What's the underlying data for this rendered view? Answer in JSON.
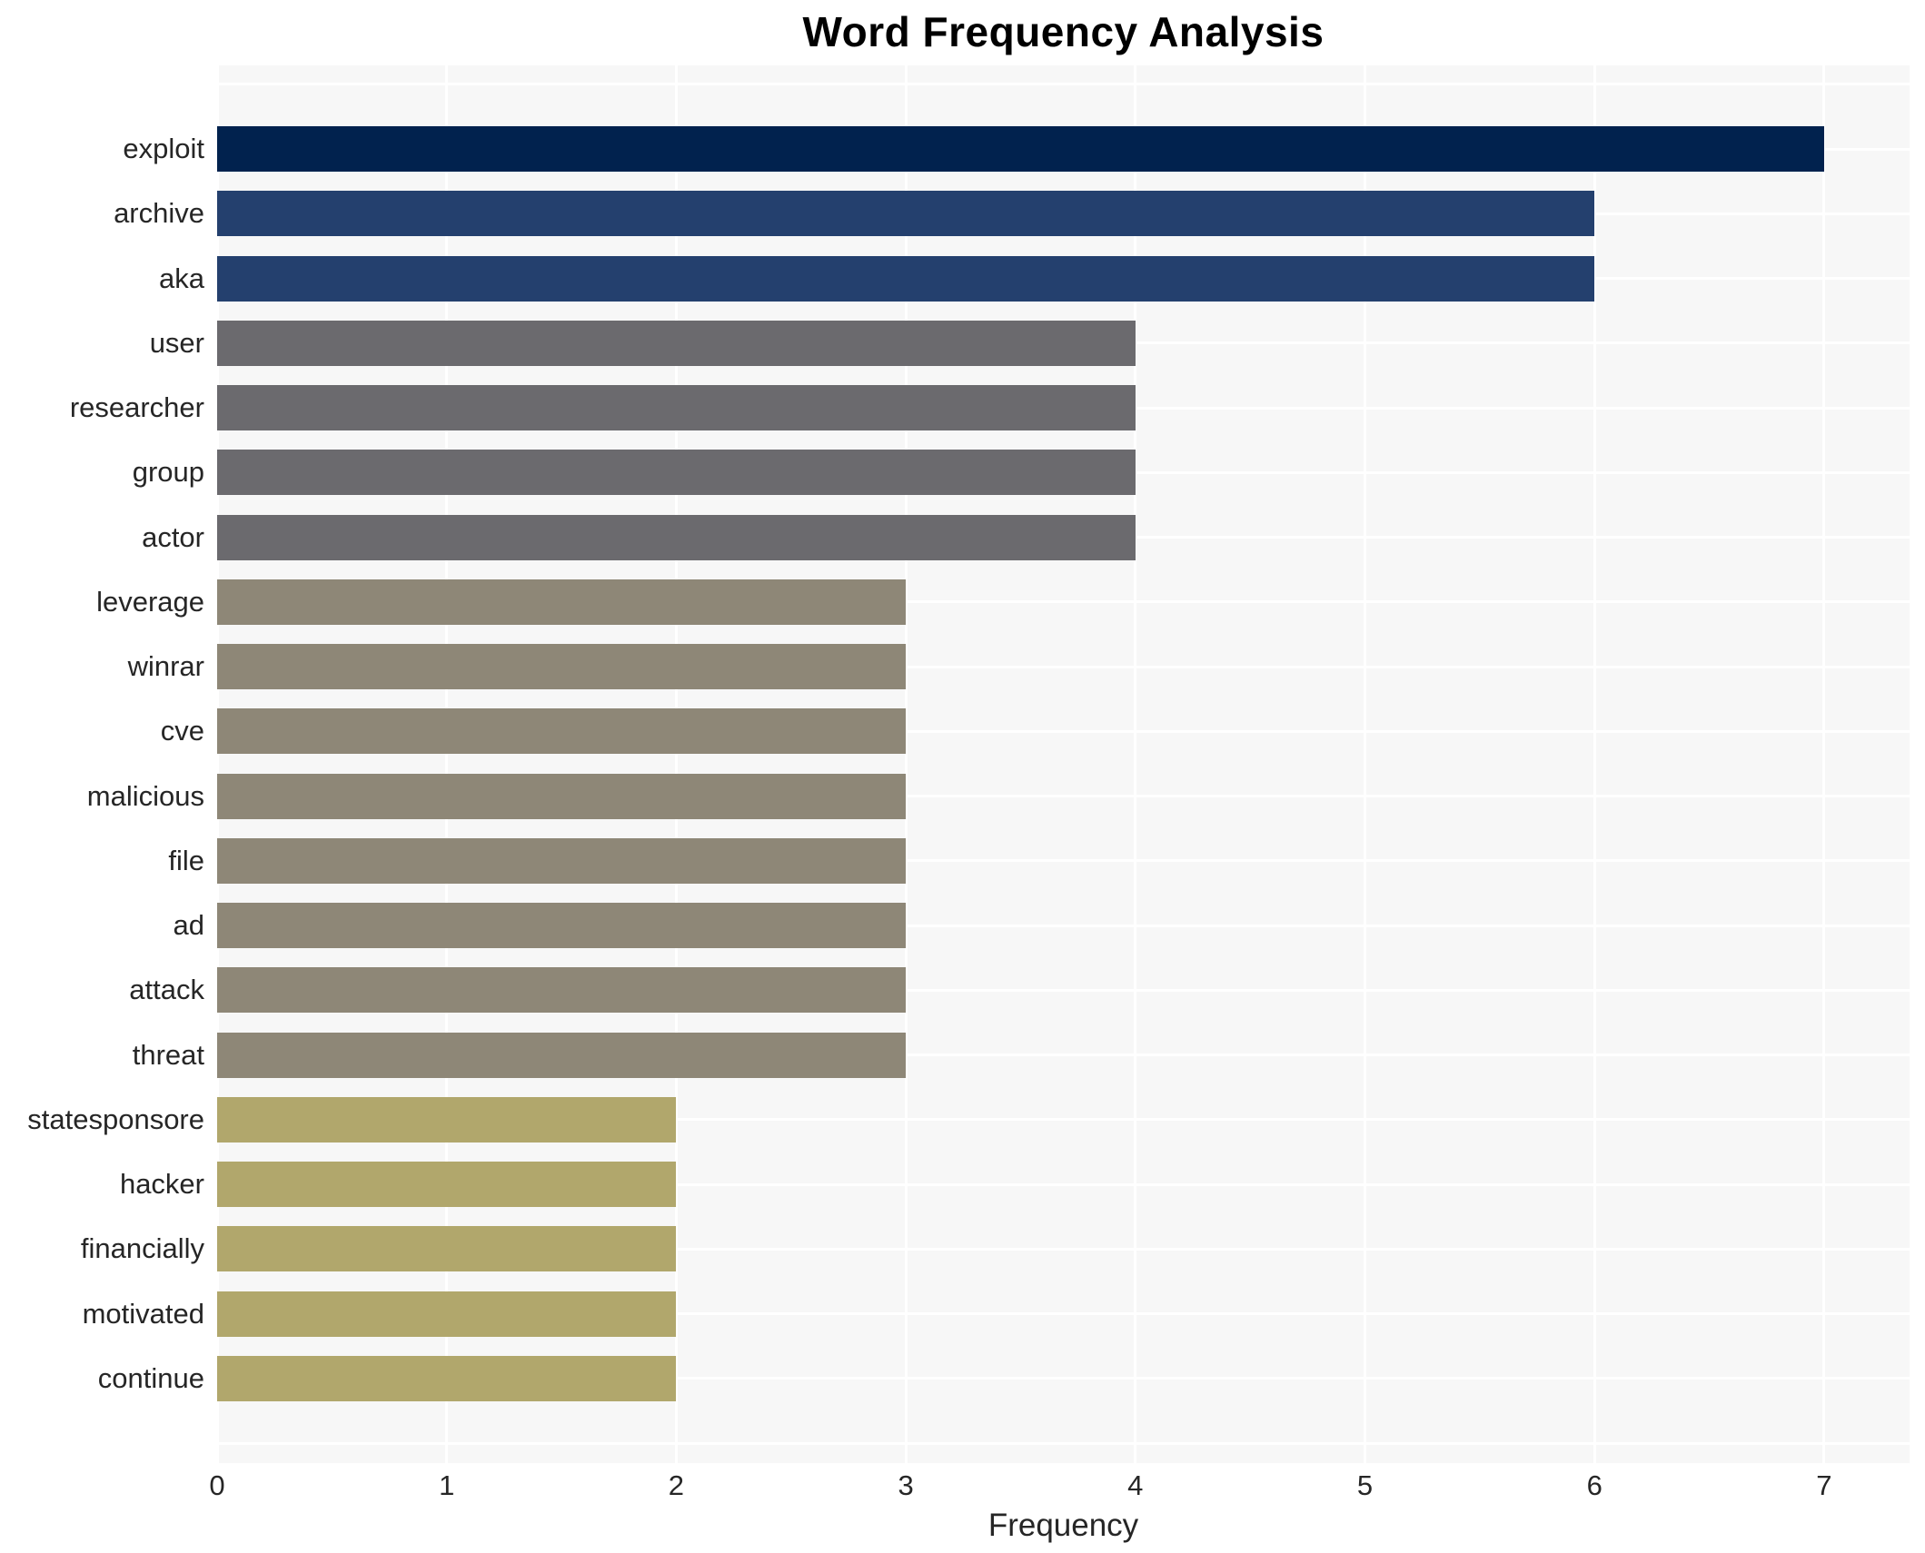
{
  "chart_data": {
    "type": "bar",
    "orientation": "horizontal",
    "title": "Word Frequency Analysis",
    "xlabel": "Frequency",
    "ylabel": "",
    "categories": [
      "exploit",
      "archive",
      "aka",
      "user",
      "researcher",
      "group",
      "actor",
      "leverage",
      "winrar",
      "cve",
      "malicious",
      "file",
      "ad",
      "attack",
      "threat",
      "statesponsore",
      "hacker",
      "financially",
      "motivated",
      "continue"
    ],
    "values": [
      7,
      6,
      6,
      4,
      4,
      4,
      4,
      3,
      3,
      3,
      3,
      3,
      3,
      3,
      3,
      2,
      2,
      2,
      2,
      2
    ],
    "bar_colors": [
      "#01224e",
      "#24406e",
      "#24406e",
      "#6b6a6e",
      "#6b6a6e",
      "#6b6a6e",
      "#6b6a6e",
      "#8e8777",
      "#8e8777",
      "#8e8777",
      "#8e8777",
      "#8e8777",
      "#8e8777",
      "#8e8777",
      "#8e8777",
      "#b1a76c",
      "#b1a76c",
      "#b1a76c",
      "#b1a76c",
      "#b1a76c"
    ],
    "x_ticks": [
      "0",
      "1",
      "2",
      "3",
      "4",
      "5",
      "6",
      "7"
    ],
    "xlim": [
      0,
      7.37
    ],
    "grid": true,
    "legend": false,
    "panel_bg": "#f7f7f7",
    "grid_color": "#ffffff",
    "text_color": "#262626"
  }
}
